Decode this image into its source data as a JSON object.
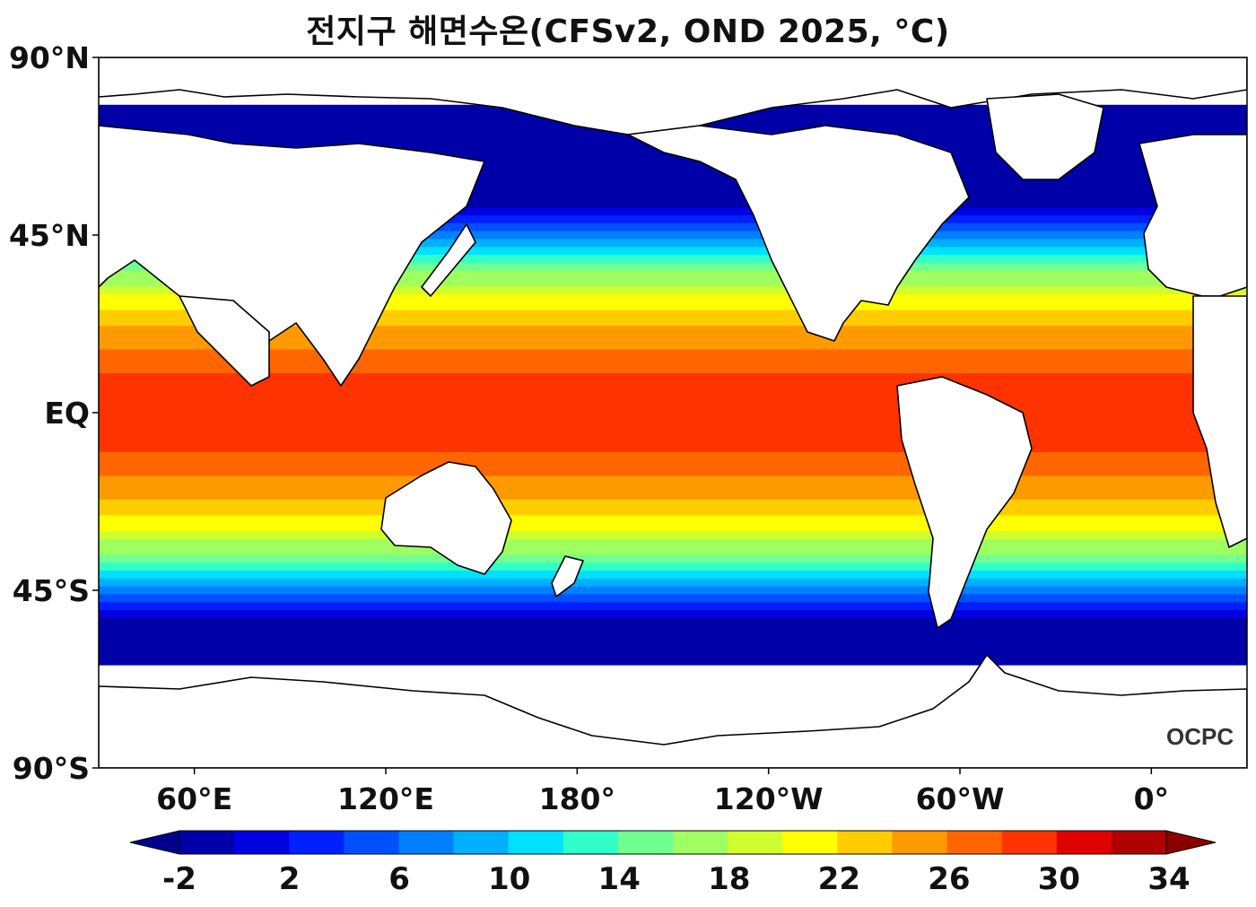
{
  "title": "전지구 해면수온(CFSv2, OND 2025, °C)",
  "logo_text": "OCPC",
  "map": {
    "projection": "equirectangular",
    "lon_range": [
      30,
      390
    ],
    "lat_range": [
      -90,
      90
    ],
    "lat_ticks": [
      {
        "lat": 90,
        "label": "90°N"
      },
      {
        "lat": 45,
        "label": "45°N"
      },
      {
        "lat": 0,
        "label": "EQ"
      },
      {
        "lat": -45,
        "label": "45°S"
      },
      {
        "lat": -90,
        "label": "90°S"
      }
    ],
    "lon_ticks": [
      {
        "lon": 60,
        "label": "60°E"
      },
      {
        "lon": 120,
        "label": "120°E"
      },
      {
        "lon": 180,
        "label": "180°"
      },
      {
        "lon": 240,
        "label": "120°W"
      },
      {
        "lon": 300,
        "label": "60°W"
      },
      {
        "lon": 360,
        "label": "0°"
      }
    ],
    "land_color": "#ffffff",
    "coast_color": "#000000"
  },
  "colorbar": {
    "levels": [
      -2,
      0,
      2,
      4,
      6,
      8,
      10,
      12,
      14,
      16,
      18,
      20,
      22,
      24,
      26,
      28,
      30,
      32,
      34
    ],
    "tick_labels": [
      "-2",
      "2",
      "6",
      "10",
      "14",
      "18",
      "22",
      "26",
      "30",
      "34"
    ],
    "under_color": "#00008c",
    "over_color": "#8c0000",
    "colors": [
      "#0000a8",
      "#0000e0",
      "#0020ff",
      "#0050ff",
      "#0080ff",
      "#00b0ff",
      "#00e0ff",
      "#30ffc8",
      "#70ff90",
      "#a0ff60",
      "#d0ff30",
      "#ffff00",
      "#ffcc00",
      "#ff9900",
      "#ff6600",
      "#ff3300",
      "#e00000",
      "#b00000"
    ]
  }
}
